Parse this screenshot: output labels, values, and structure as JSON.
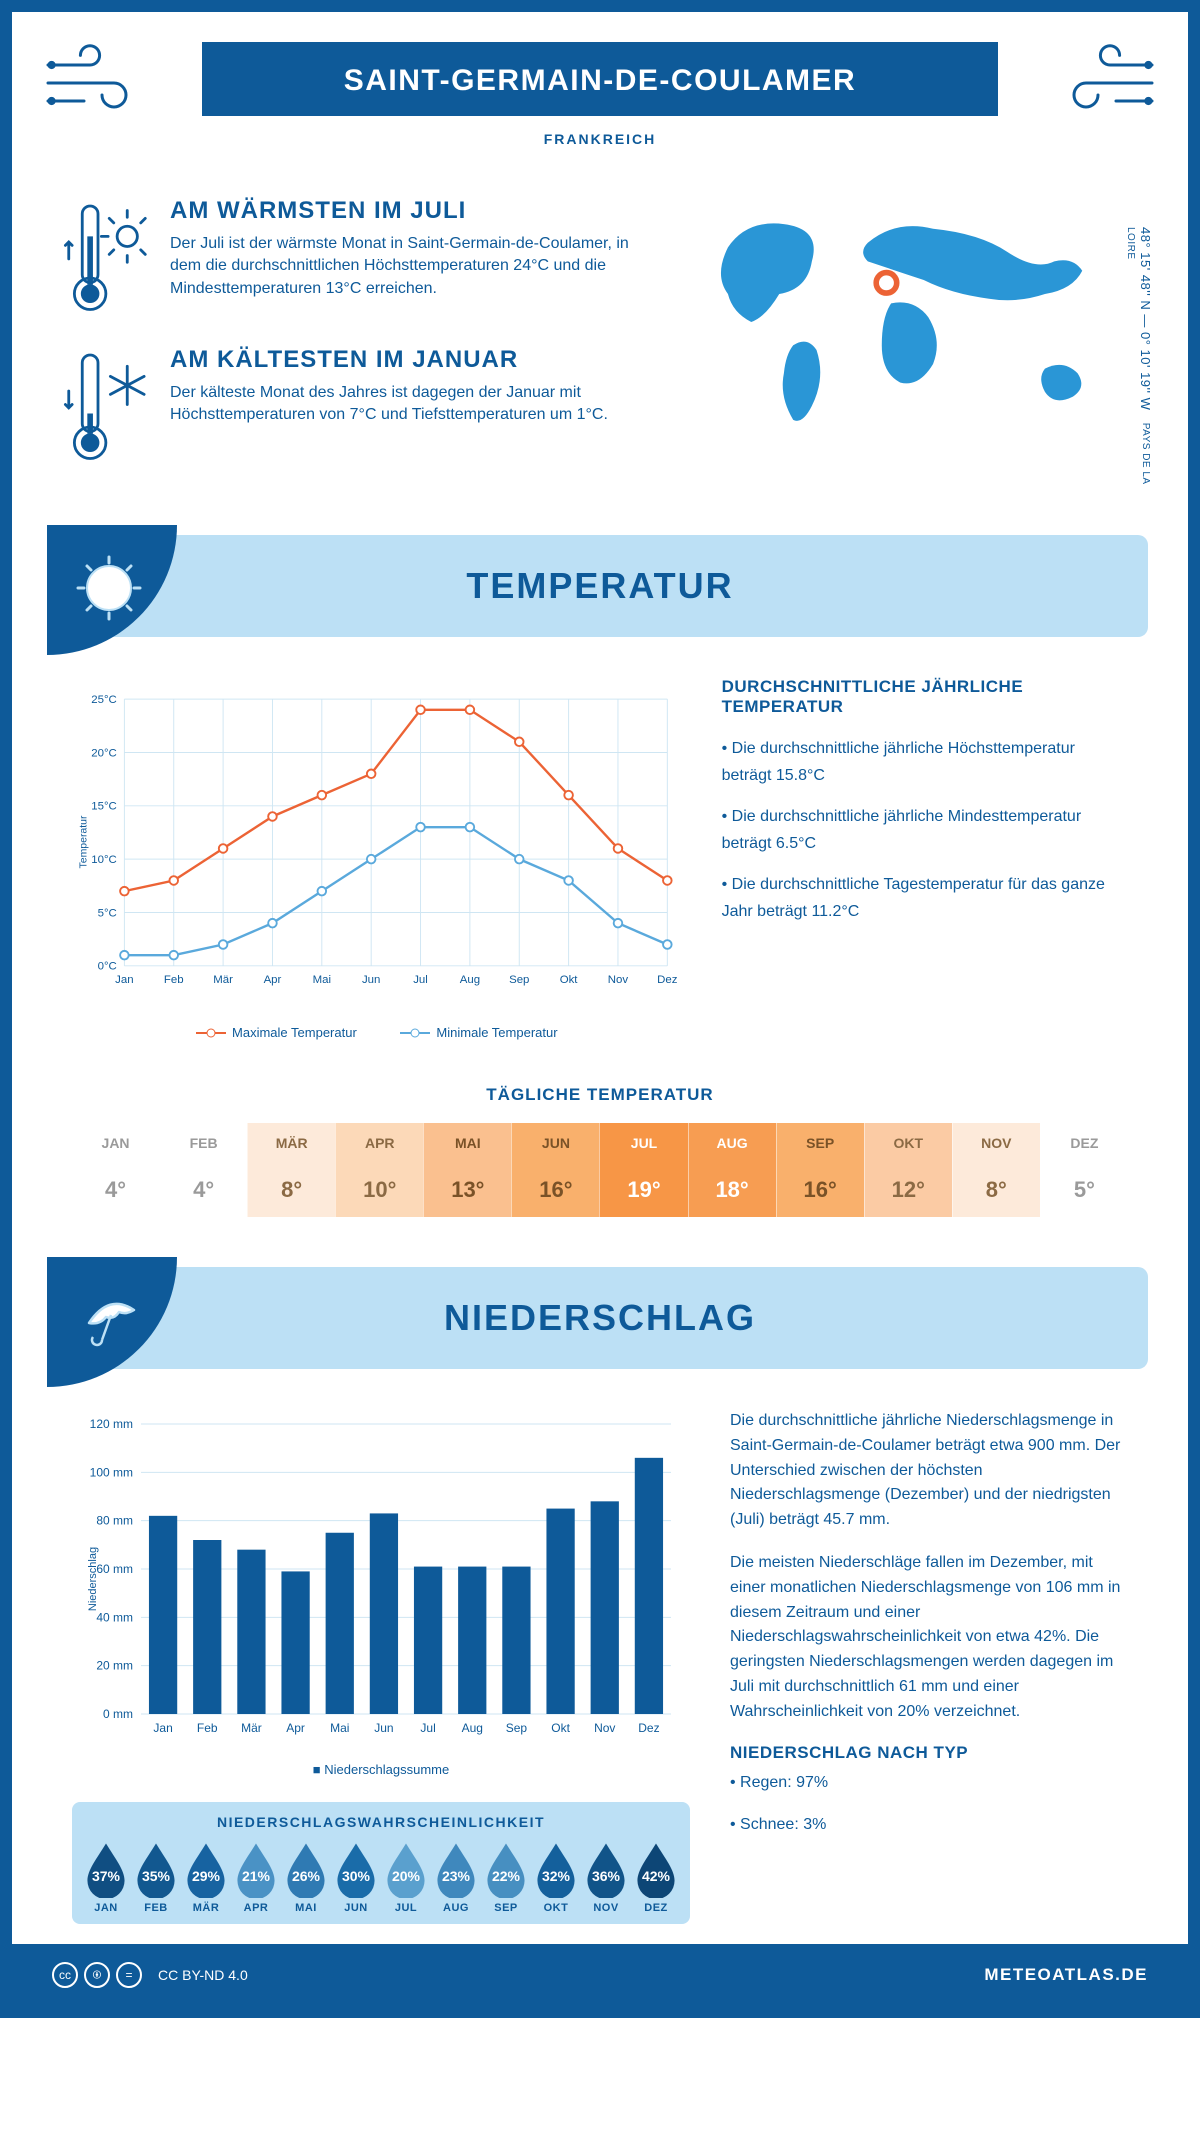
{
  "header": {
    "title": "SAINT-GERMAIN-DE-COULAMER",
    "country": "FRANKREICH"
  },
  "location": {
    "coords": "48° 15' 48'' N — 0° 10' 19'' W",
    "region": "PAYS DE LA LOIRE",
    "marker": {
      "cx_pct": 46,
      "cy_pct": 34
    }
  },
  "summary": {
    "warm": {
      "title": "AM WÄRMSTEN IM JULI",
      "text": "Der Juli ist der wärmste Monat in Saint-Germain-de-Coulamer, in dem die durchschnittlichen Höchsttemperaturen 24°C und die Mindesttemperaturen 13°C erreichen."
    },
    "cold": {
      "title": "AM KÄLTESTEN IM JANUAR",
      "text": "Der kälteste Monat des Jahres ist dagegen der Januar mit Höchsttemperaturen von 7°C und Tiefsttemperaturen um 1°C."
    }
  },
  "temperature": {
    "heading": "TEMPERATUR",
    "chart": {
      "type": "line",
      "months": [
        "Jan",
        "Feb",
        "Mär",
        "Apr",
        "Mai",
        "Jun",
        "Jul",
        "Aug",
        "Sep",
        "Okt",
        "Nov",
        "Dez"
      ],
      "max_values": [
        7,
        8,
        11,
        14,
        16,
        18,
        24,
        24,
        21,
        16,
        11,
        8
      ],
      "min_values": [
        1,
        1,
        2,
        4,
        7,
        10,
        13,
        13,
        10,
        8,
        4,
        2
      ],
      "max_color": "#ec6335",
      "min_color": "#5aa9dc",
      "grid_color": "#cfe6f3",
      "axis_color": "#0e5a99",
      "ylim": [
        0,
        25
      ],
      "ytick_step": 5,
      "ylabel": "Temperatur",
      "max_label": "Maximale Temperatur",
      "min_label": "Minimale Temperatur"
    },
    "annual": {
      "heading": "DURCHSCHNITTLICHE JÄHRLICHE TEMPERATUR",
      "b1": "• Die durchschnittliche jährliche Höchsttemperatur beträgt 15.8°C",
      "b2": "• Die durchschnittliche jährliche Mindesttemperatur beträgt 6.5°C",
      "b3": "• Die durchschnittliche Tagestemperatur für das ganze Jahr beträgt 11.2°C"
    },
    "daily": {
      "title": "TÄGLICHE TEMPERATUR",
      "months": [
        "JAN",
        "FEB",
        "MÄR",
        "APR",
        "MAI",
        "JUN",
        "JUL",
        "AUG",
        "SEP",
        "OKT",
        "NOV",
        "DEZ"
      ],
      "values": [
        "4°",
        "4°",
        "8°",
        "10°",
        "13°",
        "16°",
        "19°",
        "18°",
        "16°",
        "12°",
        "8°",
        "5°"
      ],
      "bg_colors": [
        "#ffffff",
        "#ffffff",
        "#fdeada",
        "#fcd9b8",
        "#fac08f",
        "#f9b06c",
        "#f79646",
        "#f79d52",
        "#f9b06c",
        "#fbcba4",
        "#fdeada",
        "#ffffff"
      ],
      "text_colors": [
        "#9a9a9a",
        "#9a9a9a",
        "#8b6a44",
        "#8b6a44",
        "#7a5227",
        "#7a5227",
        "#ffffff",
        "#ffffff",
        "#7a5227",
        "#8b6a44",
        "#8b6a44",
        "#9a9a9a"
      ]
    }
  },
  "precipitation": {
    "heading": "NIEDERSCHLAG",
    "chart": {
      "type": "bar",
      "months": [
        "Jan",
        "Feb",
        "Mär",
        "Apr",
        "Mai",
        "Jun",
        "Jul",
        "Aug",
        "Sep",
        "Okt",
        "Nov",
        "Dez"
      ],
      "values": [
        82,
        72,
        68,
        59,
        75,
        83,
        61,
        61,
        61,
        85,
        88,
        106
      ],
      "bar_color": "#0e5a99",
      "grid_color": "#cfe6f3",
      "axis_color": "#0e5a99",
      "ylim": [
        0,
        120
      ],
      "ytick_step": 20,
      "ylabel": "Niederschlag",
      "legend": "Niederschlagssumme"
    },
    "text": {
      "p1": "Die durchschnittliche jährliche Niederschlagsmenge in Saint-Germain-de-Coulamer beträgt etwa 900 mm. Der Unterschied zwischen der höchsten Niederschlagsmenge (Dezember) und der niedrigsten (Juli) beträgt 45.7 mm.",
      "p2": "Die meisten Niederschläge fallen im Dezember, mit einer monatlichen Niederschlagsmenge von 106 mm in diesem Zeitraum und einer Niederschlagswahrscheinlichkeit von etwa 42%. Die geringsten Niederschlagsmengen werden dagegen im Juli mit durchschnittlich 61 mm und einer Wahrscheinlichkeit von 20% verzeichnet.",
      "type_heading": "NIEDERSCHLAG NACH TYP",
      "rain": "• Regen: 97%",
      "snow": "• Schnee: 3%"
    },
    "probability": {
      "title": "NIEDERSCHLAGSWAHRSCHEINLICHKEIT",
      "months": [
        "JAN",
        "FEB",
        "MÄR",
        "APR",
        "MAI",
        "JUN",
        "JUL",
        "AUG",
        "SEP",
        "OKT",
        "NOV",
        "DEZ"
      ],
      "values": [
        "37%",
        "35%",
        "29%",
        "21%",
        "26%",
        "30%",
        "20%",
        "23%",
        "22%",
        "32%",
        "36%",
        "42%"
      ],
      "colors": [
        "#104e82",
        "#125890",
        "#1763a1",
        "#4a92c5",
        "#2f7ab3",
        "#1a6ca9",
        "#5aa0ce",
        "#3f88bd",
        "#478fc1",
        "#14609c",
        "#115489",
        "#0d4676"
      ]
    }
  },
  "footer": {
    "license": "CC BY-ND 4.0",
    "brand": "METEOATLAS.DE"
  },
  "colors": {
    "primary": "#0e5a99",
    "light_blue": "#bce0f5",
    "map_blue": "#2a96d6"
  }
}
